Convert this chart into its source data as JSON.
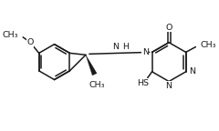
{
  "bg": "#ffffff",
  "lc": "#1a1a1a",
  "lw": 1.1,
  "fs": 6.8,
  "xlim": [
    0,
    240
  ],
  "ylim": [
    0,
    144
  ]
}
